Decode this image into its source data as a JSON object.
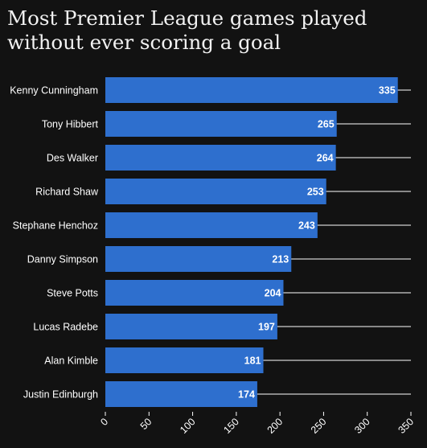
{
  "chart_data": {
    "type": "bar",
    "orientation": "horizontal",
    "title_lines": [
      "Most Premier League games played",
      "without ever scoring a goal"
    ],
    "categories": [
      "Kenny Cunningham",
      "Tony Hibbert",
      "Des Walker",
      "Richard Shaw",
      "Stephane Henchoz",
      "Danny Simpson",
      "Steve Potts",
      "Lucas Radebe",
      "Alan Kimble",
      "Justin Edinburgh"
    ],
    "values": [
      335,
      265,
      264,
      253,
      243,
      213,
      204,
      197,
      181,
      174
    ],
    "xlim": [
      0,
      350
    ],
    "x_ticks": [
      0,
      50,
      100,
      150,
      200,
      250,
      300,
      350
    ],
    "xlabel": "",
    "ylabel": "",
    "grid": "horizontal guide line behind each bar",
    "legend": "none",
    "colors": {
      "background": "#121212",
      "bar": "#2e6fce",
      "text": "#ffffff",
      "grid": "#ffffff"
    }
  }
}
